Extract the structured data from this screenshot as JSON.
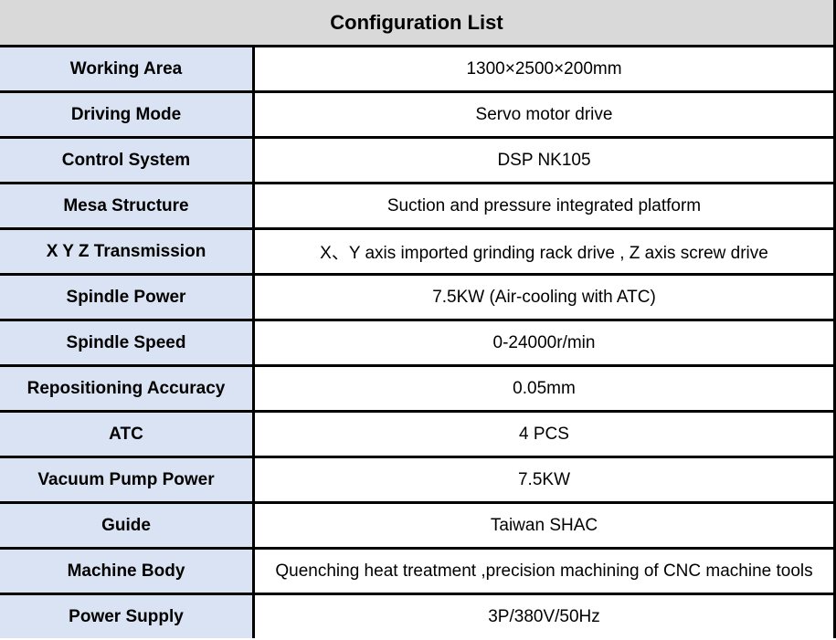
{
  "title": "Configuration List",
  "colors": {
    "header_bg": "#d9d9d9",
    "key_bg": "#dae3f3",
    "border": "#000000"
  },
  "rows": [
    {
      "key": "Working Area",
      "value": "1300×2500×200mm"
    },
    {
      "key": "Driving Mode",
      "value": "Servo motor drive"
    },
    {
      "key": "Control System",
      "value": "DSP NK105"
    },
    {
      "key": "Mesa Structure",
      "value": "Suction and pressure integrated platform"
    },
    {
      "key": "X Y Z Transmission",
      "value": "X、Y axis imported grinding rack drive , Z axis screw drive"
    },
    {
      "key": "Spindle Power",
      "value": "7.5KW (Air-cooling with ATC)"
    },
    {
      "key": "Spindle Speed",
      "value": "0-24000r/min"
    },
    {
      "key": "Repositioning Accuracy",
      "value": "0.05mm"
    },
    {
      "key": "ATC",
      "value": "4 PCS"
    },
    {
      "key": "Vacuum Pump Power",
      "value": "7.5KW"
    },
    {
      "key": "Guide",
      "value": "Taiwan SHAC"
    },
    {
      "key": "Machine Body",
      "value": "Quenching heat treatment ,precision machining of CNC machine tools"
    },
    {
      "key": "Power Supply",
      "value": "3P/380V/50Hz"
    }
  ]
}
